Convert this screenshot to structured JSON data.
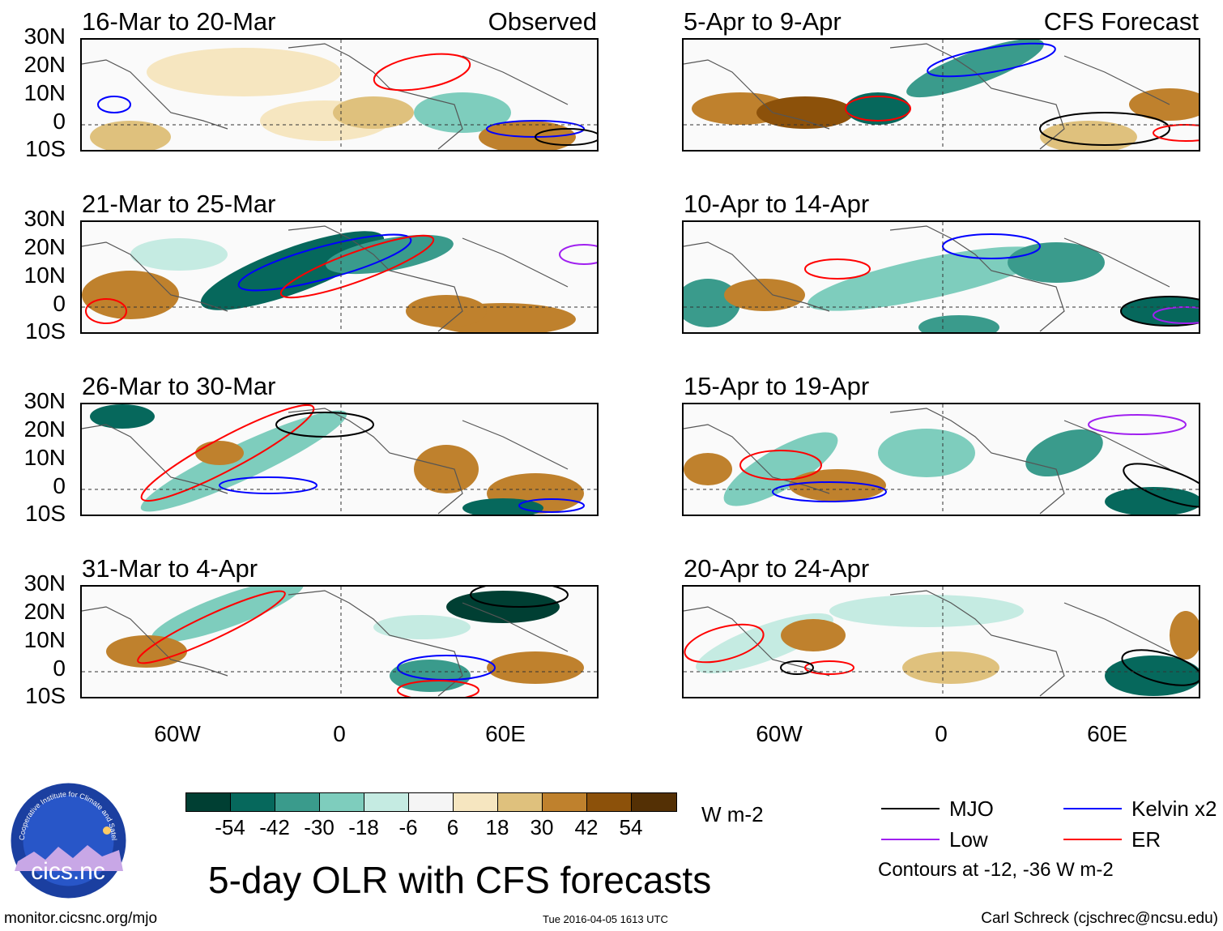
{
  "panels": [
    {
      "title": "16-Mar to 20-Mar",
      "label": "Observed"
    },
    {
      "title": "5-Apr to 9-Apr",
      "label": "CFS Forecast"
    },
    {
      "title": "21-Mar to 25-Mar",
      "label": ""
    },
    {
      "title": "10-Apr to 14-Apr",
      "label": ""
    },
    {
      "title": "26-Mar to 30-Mar",
      "label": ""
    },
    {
      "title": "15-Apr to 19-Apr",
      "label": ""
    },
    {
      "title": "31-Mar to 4-Apr",
      "label": ""
    },
    {
      "title": "20-Apr to 24-Apr",
      "label": ""
    }
  ],
  "lat_labels": [
    "30N",
    "20N",
    "10N",
    "0",
    "10S"
  ],
  "lon_labels": [
    "60W",
    "0",
    "60E"
  ],
  "colorbar": {
    "colors": [
      "#003f33",
      "#06685c",
      "#3a9b8c",
      "#7ecdbd",
      "#c5ebe2",
      "#f5f5f5",
      "#f6e6c0",
      "#dfc17d",
      "#bf812d",
      "#8c510a",
      "#543005"
    ],
    "labels": [
      "-54",
      "-42",
      "-30",
      "-18",
      "-6",
      "6",
      "18",
      "30",
      "42",
      "54"
    ],
    "units": "W m-2"
  },
  "legend": {
    "items": [
      {
        "name": "MJO",
        "color": "#000000"
      },
      {
        "name": "Kelvin x2",
        "color": "#0000ff"
      },
      {
        "name": "Low",
        "color": "#a020f0"
      },
      {
        "name": "ER",
        "color": "#ff0000"
      }
    ],
    "note": "Contours at -12, -36 W m-2"
  },
  "main_title": "5-day OLR with CFS forecasts",
  "logo_text": "cics.nc",
  "logo_ring_text": "Cooperative Institute for Climate and Satellites",
  "footer": {
    "url": "monitor.cicsnc.org/mjo",
    "timestamp": "Tue 2016-04-05 1613 UTC",
    "author": "Carl Schreck (cjschrec@ncsu.edu)"
  }
}
